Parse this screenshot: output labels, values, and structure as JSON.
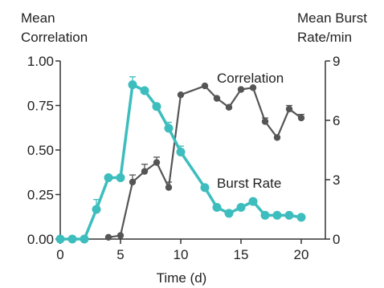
{
  "chart_data": {
    "type": "line",
    "xlabel": "Time (d)",
    "y_left_label_lines": [
      "Mean",
      "Correlation"
    ],
    "y_right_label_lines": [
      "Mean Burst",
      "Rate/min"
    ],
    "xlim": [
      0,
      21
    ],
    "ylim_left": [
      0,
      1
    ],
    "ylim_right": [
      0,
      9
    ],
    "x_ticks": [
      0,
      5,
      10,
      15,
      20
    ],
    "y_left_ticks": [
      "0.00",
      "0.25",
      "0.50",
      "0.75",
      "1.00"
    ],
    "y_right_ticks": [
      "0",
      "3",
      "6",
      "9"
    ],
    "series": [
      {
        "name": "Correlation",
        "axis": "left",
        "color": "#555555",
        "points": [
          {
            "x": 4,
            "y": 0.01,
            "err": 0
          },
          {
            "x": 5,
            "y": 0.02,
            "err": 0
          },
          {
            "x": 6,
            "y": 0.32,
            "err": 0.04
          },
          {
            "x": 7,
            "y": 0.38,
            "err": 0.04
          },
          {
            "x": 8,
            "y": 0.43,
            "err": 0.03
          },
          {
            "x": 9,
            "y": 0.29,
            "err": 0.03
          },
          {
            "x": 10,
            "y": 0.81,
            "err": 0
          },
          {
            "x": 12,
            "y": 0.86,
            "err": 0
          },
          {
            "x": 13,
            "y": 0.79,
            "err": 0
          },
          {
            "x": 14,
            "y": 0.74,
            "err": 0
          },
          {
            "x": 15,
            "y": 0.84,
            "err": 0
          },
          {
            "x": 16,
            "y": 0.85,
            "err": 0
          },
          {
            "x": 17,
            "y": 0.66,
            "err": 0.02
          },
          {
            "x": 18,
            "y": 0.57,
            "err": 0
          },
          {
            "x": 19,
            "y": 0.73,
            "err": 0.02
          },
          {
            "x": 20,
            "y": 0.68,
            "err": 0.02
          }
        ]
      },
      {
        "name": "Burst Rate",
        "axis": "right",
        "color": "#3dbdbd",
        "points": [
          {
            "x": 0,
            "y": 0.0,
            "err": 0
          },
          {
            "x": 1,
            "y": 0.0,
            "err": 0
          },
          {
            "x": 2,
            "y": 0.0,
            "err": 0
          },
          {
            "x": 3,
            "y": 1.5,
            "err": 0.5
          },
          {
            "x": 4,
            "y": 3.1,
            "err": 0
          },
          {
            "x": 5,
            "y": 3.1,
            "err": 0
          },
          {
            "x": 6,
            "y": 7.8,
            "err": 0.4
          },
          {
            "x": 7,
            "y": 7.5,
            "err": 0
          },
          {
            "x": 8,
            "y": 6.7,
            "err": 0
          },
          {
            "x": 9,
            "y": 5.6,
            "err": 0.3
          },
          {
            "x": 10,
            "y": 4.4,
            "err": 0.3
          },
          {
            "x": 12,
            "y": 2.6,
            "err": 0
          },
          {
            "x": 13,
            "y": 1.6,
            "err": 0
          },
          {
            "x": 14,
            "y": 1.3,
            "err": 0
          },
          {
            "x": 15,
            "y": 1.6,
            "err": 0
          },
          {
            "x": 16,
            "y": 1.9,
            "err": 0
          },
          {
            "x": 17,
            "y": 1.2,
            "err": 0
          },
          {
            "x": 18,
            "y": 1.2,
            "err": 0
          },
          {
            "x": 19,
            "y": 1.2,
            "err": 0
          },
          {
            "x": 20,
            "y": 1.1,
            "err": 0
          }
        ]
      }
    ],
    "annotations": [
      {
        "text": "Correlation",
        "series": "Correlation"
      },
      {
        "text": "Burst Rate",
        "series": "Burst Rate"
      }
    ],
    "grid": false,
    "legend": "none"
  }
}
